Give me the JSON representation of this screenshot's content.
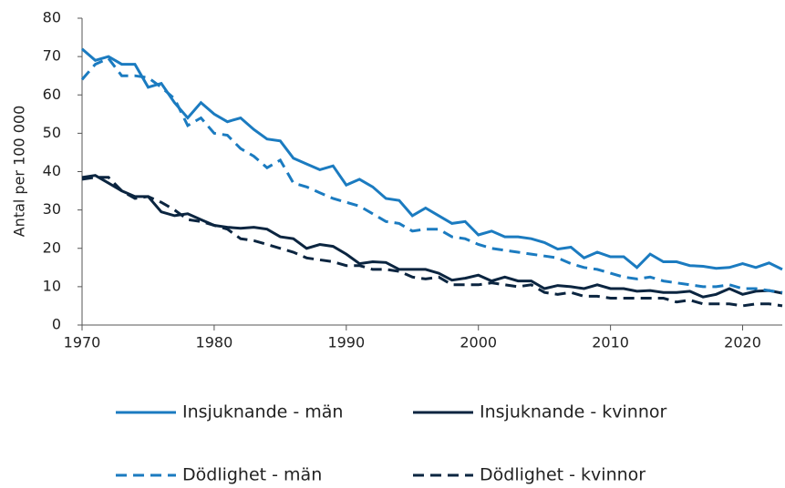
{
  "chart_data": {
    "type": "line",
    "y_label": "Antal per 100 000",
    "x": [
      1970,
      1971,
      1972,
      1973,
      1974,
      1975,
      1976,
      1977,
      1978,
      1979,
      1980,
      1981,
      1982,
      1983,
      1984,
      1985,
      1986,
      1987,
      1988,
      1989,
      1990,
      1991,
      1992,
      1993,
      1994,
      1995,
      1996,
      1997,
      1998,
      1999,
      2000,
      2001,
      2002,
      2003,
      2004,
      2005,
      2006,
      2007,
      2008,
      2009,
      2010,
      2011,
      2012,
      2013,
      2014,
      2015,
      2016,
      2017,
      2018,
      2019,
      2020,
      2021,
      2022,
      2023
    ],
    "xlim": [
      1970,
      2023
    ],
    "xticks": [
      1970,
      1980,
      1990,
      2000,
      2010,
      2020
    ],
    "ylim": [
      0,
      80
    ],
    "yticks": [
      0,
      10,
      20,
      30,
      40,
      50,
      60,
      70,
      80
    ],
    "grid": false,
    "series": [
      {
        "name": "Insjuknande - män",
        "color": "#1b7bc0",
        "dashed": false,
        "values": [
          72,
          69,
          70,
          68,
          68,
          62,
          63,
          58,
          54,
          58,
          55,
          53,
          54,
          51,
          48.5,
          48,
          43.5,
          42,
          40.5,
          41.5,
          36.5,
          38,
          36,
          33,
          32.5,
          28.5,
          30.5,
          28.5,
          26.5,
          27,
          23.5,
          24.5,
          23,
          23,
          22.5,
          21.5,
          19.8,
          20.3,
          17.5,
          19,
          17.8,
          17.8,
          15,
          18.5,
          16.5,
          16.5,
          15.5,
          15.3,
          14.8,
          15,
          16,
          15,
          16.2,
          14.5
        ]
      },
      {
        "name": "Insjuknande - kvinnor",
        "color": "#0b2540",
        "dashed": false,
        "values": [
          38.5,
          39,
          37,
          35,
          33.5,
          33.5,
          29.5,
          28.5,
          29,
          27.5,
          26,
          25.5,
          25.2,
          25.5,
          25,
          23,
          22.5,
          20,
          21,
          20.5,
          18.5,
          16,
          16.5,
          16.3,
          14.5,
          14.5,
          14.5,
          13.5,
          11.7,
          12.2,
          13,
          11.5,
          12.5,
          11.5,
          11.5,
          9.5,
          10.3,
          10,
          9.5,
          10.5,
          9.5,
          9.5,
          8.8,
          9,
          8.5,
          8.5,
          8.8,
          7.3,
          8,
          9.5,
          8,
          8.8,
          9,
          8.3
        ]
      },
      {
        "name": "Dödlighet - män",
        "color": "#1b7bc0",
        "dashed": true,
        "values": [
          64,
          68,
          69.5,
          65,
          65,
          64.5,
          62,
          59,
          52,
          54,
          50,
          49.5,
          46,
          44,
          41,
          43,
          37,
          36,
          34.5,
          33,
          32,
          31,
          29,
          27,
          26.5,
          24.5,
          25,
          25,
          23,
          22.5,
          21,
          20,
          19.5,
          19,
          18.5,
          18,
          17.5,
          16,
          15,
          14.5,
          13.5,
          12.5,
          12,
          12.5,
          11.5,
          11,
          10.5,
          10,
          10,
          10.5,
          9.5,
          9.5,
          9,
          8.5
        ]
      },
      {
        "name": "Dödlighet - kvinnor",
        "color": "#0b2540",
        "dashed": true,
        "values": [
          38,
          38.5,
          38.5,
          35,
          33,
          33.5,
          32,
          30,
          27.5,
          27,
          26,
          25,
          22.5,
          22,
          21,
          20,
          19,
          17.5,
          17,
          16.5,
          15.5,
          15.5,
          14.5,
          14.5,
          14,
          12.5,
          12,
          12.5,
          10.5,
          10.5,
          10.5,
          11,
          10.5,
          10,
          10.5,
          8.5,
          8,
          8.5,
          7.5,
          7.5,
          7,
          7,
          7,
          7,
          7,
          6,
          6.5,
          5.5,
          5.5,
          5.5,
          5,
          5.5,
          5.5,
          5
        ]
      }
    ]
  }
}
